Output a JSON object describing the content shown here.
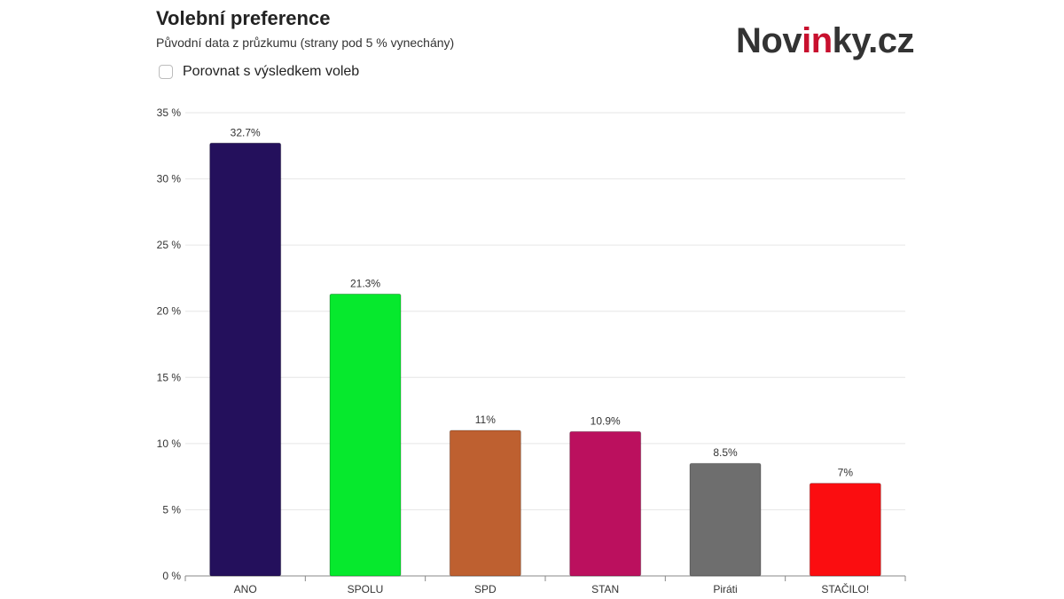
{
  "header": {
    "title": "Volební preference",
    "subtitle": "Původní data z průzkumu (strany pod 5 % vynechány)"
  },
  "logo": {
    "part1": "Nov",
    "part2": "in",
    "part3": "ky.cz",
    "accent_color": "#c8102e"
  },
  "compare_toggle": {
    "label": "Porovnat s výsledkem voleb",
    "checked": false
  },
  "chart_data": {
    "type": "bar",
    "categories": [
      "ANO",
      "SPOLU",
      "SPD",
      "STAN",
      "Piráti",
      "STAČILO!"
    ],
    "values": [
      32.7,
      21.3,
      11,
      10.9,
      8.5,
      7
    ],
    "value_labels": [
      "32.7%",
      "21.3%",
      "11%",
      "10.9%",
      "8.5%",
      "7%"
    ],
    "colors": [
      "#24105c",
      "#06e92d",
      "#be6030",
      "#bb105e",
      "#6e6e6e",
      "#fb0d10"
    ],
    "y_ticks": [
      0,
      5,
      10,
      15,
      20,
      25,
      30,
      35
    ],
    "y_tick_labels": [
      "0 %",
      "5 %",
      "10 %",
      "15 %",
      "20 %",
      "25 %",
      "30 %",
      "35 %"
    ],
    "ylim": [
      0,
      35
    ],
    "grid": true,
    "legend": "none"
  }
}
